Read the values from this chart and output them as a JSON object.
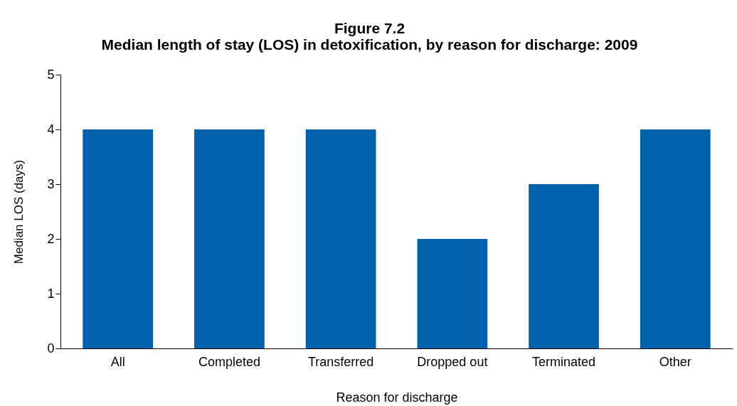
{
  "chart_data": {
    "type": "bar",
    "title": "Figure 7.2",
    "subtitle": "Median length of stay (LOS) in detoxification, by reason for discharge: 2009",
    "xlabel": "Reason for discharge",
    "ylabel": "Median LOS (days)",
    "categories": [
      "All",
      "Completed",
      "Transferred",
      "Dropped out",
      "Terminated",
      "Other"
    ],
    "values": [
      4,
      4,
      4,
      2,
      3,
      4
    ],
    "color": "#0061ab",
    "ylim": [
      0,
      5
    ],
    "yticks": [
      0,
      1,
      2,
      3,
      4,
      5
    ],
    "grid": false
  }
}
